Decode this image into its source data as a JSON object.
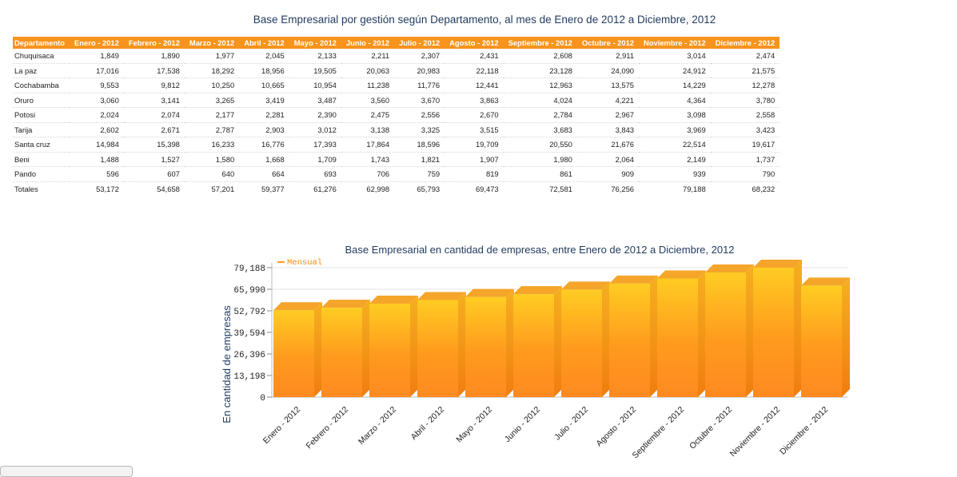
{
  "table": {
    "title": "Base Empresarial por gestión según Departamento, al mes de Enero de 2012 a Diciembre, 2012",
    "headers": [
      "Departamento",
      "Enero - 2012",
      "Febrero - 2012",
      "Marzo - 2012",
      "Abril - 2012",
      "Mayo - 2012",
      "Junio - 2012",
      "Julio - 2012",
      "Agosto - 2012",
      "Septiembre - 2012",
      "Octubre - 2012",
      "Noviembre - 2012",
      "Diciembre - 2012"
    ],
    "rows": [
      [
        "Chuquisaca",
        "1,849",
        "1,890",
        "1,977",
        "2,045",
        "2,133",
        "2,211",
        "2,307",
        "2,431",
        "2,608",
        "2,911",
        "3,014",
        "2,474"
      ],
      [
        "La paz",
        "17,016",
        "17,538",
        "18,292",
        "18,956",
        "19,505",
        "20,063",
        "20,983",
        "22,118",
        "23,128",
        "24,090",
        "24,912",
        "21,575"
      ],
      [
        "Cochabamba",
        "9,553",
        "9,812",
        "10,250",
        "10,665",
        "10,954",
        "11,238",
        "11,776",
        "12,441",
        "12,963",
        "13,575",
        "14,229",
        "12,278"
      ],
      [
        "Oruro",
        "3,060",
        "3,141",
        "3,265",
        "3,419",
        "3,487",
        "3,560",
        "3,670",
        "3,863",
        "4,024",
        "4,221",
        "4,364",
        "3,780"
      ],
      [
        "Potosi",
        "2,024",
        "2,074",
        "2,177",
        "2,281",
        "2,390",
        "2,475",
        "2,556",
        "2,670",
        "2,784",
        "2,967",
        "3,098",
        "2,558"
      ],
      [
        "Tarija",
        "2,602",
        "2,671",
        "2,787",
        "2,903",
        "3,012",
        "3,138",
        "3,325",
        "3,515",
        "3,683",
        "3,843",
        "3,969",
        "3,423"
      ],
      [
        "Santa cruz",
        "14,984",
        "15,398",
        "16,233",
        "16,776",
        "17,393",
        "17,864",
        "18,596",
        "19,709",
        "20,550",
        "21,676",
        "22,514",
        "19,617"
      ],
      [
        "Beni",
        "1,488",
        "1,527",
        "1,580",
        "1,668",
        "1,709",
        "1,743",
        "1,821",
        "1,907",
        "1,980",
        "2,064",
        "2,149",
        "1,737"
      ],
      [
        "Pando",
        "596",
        "607",
        "640",
        "664",
        "693",
        "706",
        "759",
        "819",
        "861",
        "909",
        "939",
        "790"
      ],
      [
        "Totales",
        "53,172",
        "54,658",
        "57,201",
        "59,377",
        "61,276",
        "62,998",
        "65,793",
        "69,473",
        "72,581",
        "76,256",
        "79,188",
        "68,232"
      ]
    ]
  },
  "chart_data": {
    "type": "bar",
    "title": "Base Empresarial en cantidad de empresas, entre Enero de 2012 a Diciembre, 2012",
    "ylabel": "En cantidad de empresas",
    "xlabel": "",
    "categories": [
      "Enero - 2012",
      "Febrero - 2012",
      "Marzo - 2012",
      "Abril - 2012",
      "Mayo - 2012",
      "Junio - 2012",
      "Julio - 2012",
      "Agosto - 2012",
      "Septiembre - 2012",
      "Octubre - 2012",
      "Noviembre - 2012",
      "Diciembre - 2012"
    ],
    "series": [
      {
        "name": "Mensual",
        "values": [
          53172,
          54658,
          57201,
          59377,
          61276,
          62998,
          65793,
          69473,
          72581,
          76256,
          79188,
          68232
        ]
      }
    ],
    "yticks": [
      "0",
      "13,198",
      "26,396",
      "39,594",
      "52,792",
      "65,990",
      "79,188"
    ],
    "ylim": [
      0,
      79188
    ],
    "legend_position": "top-left",
    "grid": true,
    "colors": {
      "bar": "#ff9a1e",
      "bar_top": "#f5a52a",
      "bar_side": "#f58a0c",
      "grid": "#e3e3e3",
      "title": "#1f3a5f"
    }
  }
}
